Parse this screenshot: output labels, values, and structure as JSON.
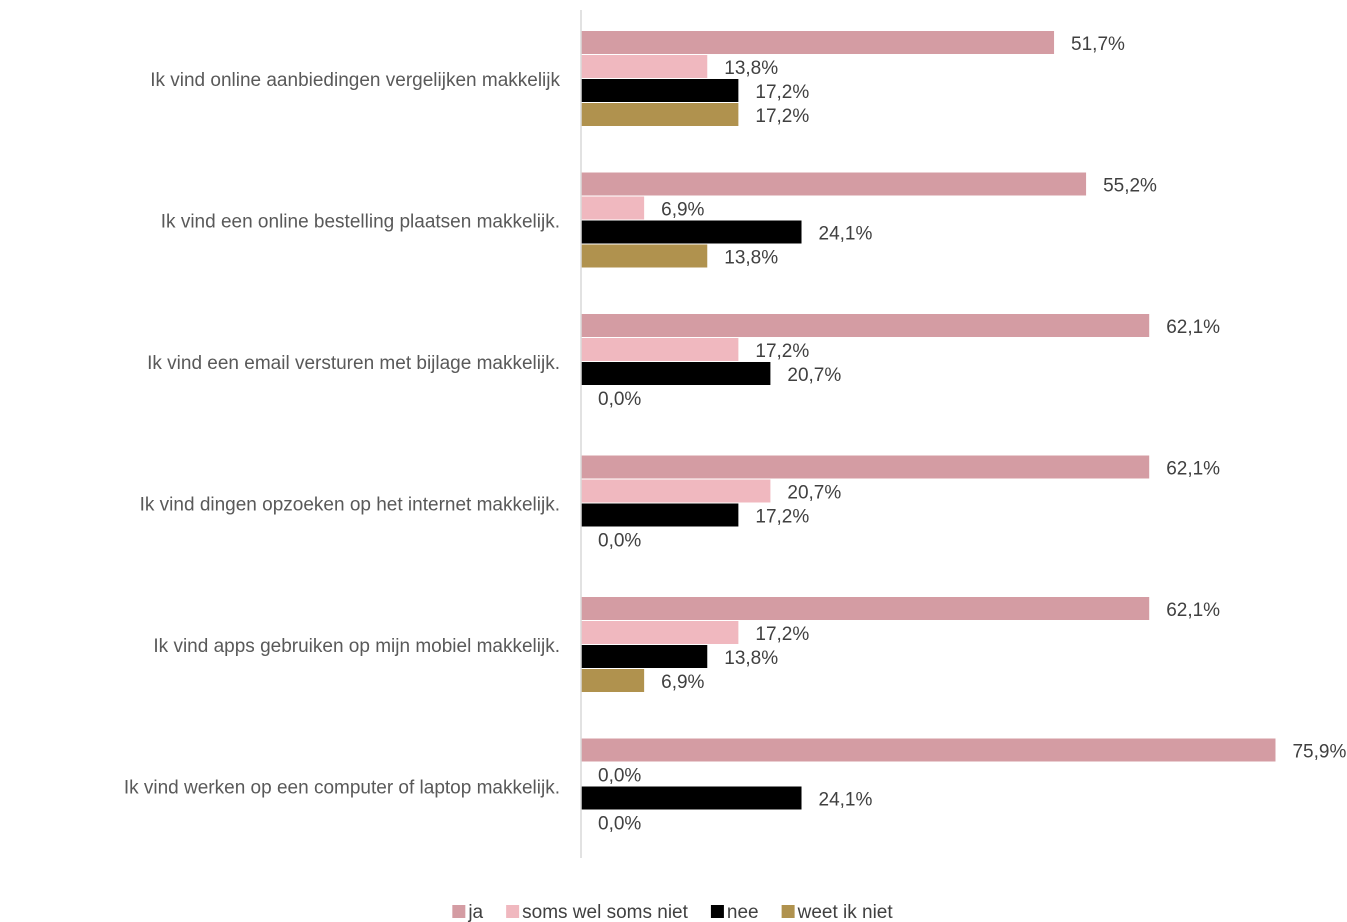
{
  "chart_data": {
    "type": "hbar",
    "categories": [
      "Ik vind online aanbiedingen vergelijken makkelijk",
      "Ik vind een online bestelling plaatsen makkelijk.",
      "Ik vind een email versturen met bijlage makkelijk.",
      "Ik vind dingen opzoeken op het internet makkelijk.",
      "Ik vind apps gebruiken op mijn mobiel makkelijk.",
      "Ik vind werken op een computer of laptop makkelijk."
    ],
    "series": [
      {
        "name": "ja",
        "color": "#d49ca3",
        "values": [
          51.7,
          55.2,
          62.1,
          62.1,
          62.1,
          75.9
        ],
        "value_labels": [
          "51,7%",
          "55,2%",
          "62,1%",
          "62,1%",
          "62,1%",
          "75,9%"
        ]
      },
      {
        "name": "soms wel soms niet",
        "color": "#f0b8bf",
        "values": [
          13.8,
          6.9,
          17.2,
          20.7,
          17.2,
          0.0
        ],
        "value_labels": [
          "13,8%",
          "6,9%",
          "17,2%",
          "20,7%",
          "17,2%",
          "0,0%"
        ]
      },
      {
        "name": "nee",
        "color": "#000000",
        "values": [
          17.2,
          24.1,
          20.7,
          17.2,
          13.8,
          24.1
        ],
        "value_labels": [
          "17,2%",
          "24,1%",
          "20,7%",
          "17,2%",
          "13,8%",
          "24,1%"
        ]
      },
      {
        "name": "weet ik niet",
        "color": "#b0924e",
        "values": [
          17.2,
          13.8,
          0.0,
          0.0,
          6.9,
          0.0
        ],
        "value_labels": [
          "17,2%",
          "13,8%",
          "0,0%",
          "0,0%",
          "6,9%",
          "0,0%"
        ]
      }
    ],
    "xlim": [
      0,
      80
    ],
    "legend": "bottom"
  }
}
